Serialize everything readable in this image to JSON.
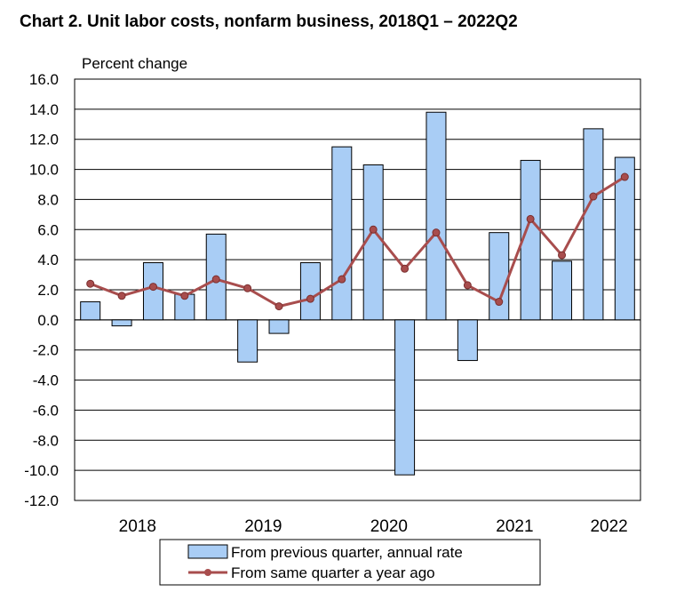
{
  "chart_data": {
    "type": "bar",
    "title": "Chart  2. Unit labor costs, nonfarm business, 2018Q1 – 2022Q2",
    "ylabel": "Percent change",
    "ylim": [
      -12.0,
      16.0
    ],
    "y_ticks": [
      "16.0",
      "14.0",
      "12.0",
      "10.0",
      "8.0",
      "6.0",
      "4.0",
      "2.0",
      "0.0",
      "-2.0",
      "-4.0",
      "-6.0",
      "-8.0",
      "-10.0",
      "-12.0"
    ],
    "x": [
      "2018Q1",
      "2018Q2",
      "2018Q3",
      "2018Q4",
      "2019Q1",
      "2019Q2",
      "2019Q3",
      "2019Q4",
      "2020Q1",
      "2020Q2",
      "2020Q3",
      "2020Q4",
      "2021Q1",
      "2021Q2",
      "2021Q3",
      "2021Q4",
      "2022Q1",
      "2022Q2"
    ],
    "year_labels": [
      {
        "label": "2018",
        "start": 0,
        "end": 3
      },
      {
        "label": "2019",
        "start": 4,
        "end": 7
      },
      {
        "label": "2020",
        "start": 8,
        "end": 11
      },
      {
        "label": "2021",
        "start": 12,
        "end": 15
      },
      {
        "label": "2022",
        "start": 16,
        "end": 17
      }
    ],
    "grid": true,
    "legend_position": "bottom-center",
    "series": [
      {
        "name": "From previous quarter, annual rate",
        "kind": "bar",
        "color": "#A9CDF5",
        "values": [
          1.2,
          -0.4,
          3.8,
          1.7,
          5.7,
          -2.8,
          -0.9,
          3.8,
          11.5,
          10.3,
          -10.3,
          13.8,
          -2.7,
          5.8,
          10.6,
          3.9,
          12.7,
          10.8
        ]
      },
      {
        "name": "From same quarter a year ago",
        "kind": "line",
        "color": "#A84D4D",
        "values": [
          2.4,
          1.6,
          2.2,
          1.6,
          2.7,
          2.1,
          0.9,
          1.4,
          2.7,
          6.0,
          3.4,
          5.8,
          2.3,
          1.2,
          6.7,
          4.3,
          8.2,
          9.5
        ]
      }
    ]
  }
}
